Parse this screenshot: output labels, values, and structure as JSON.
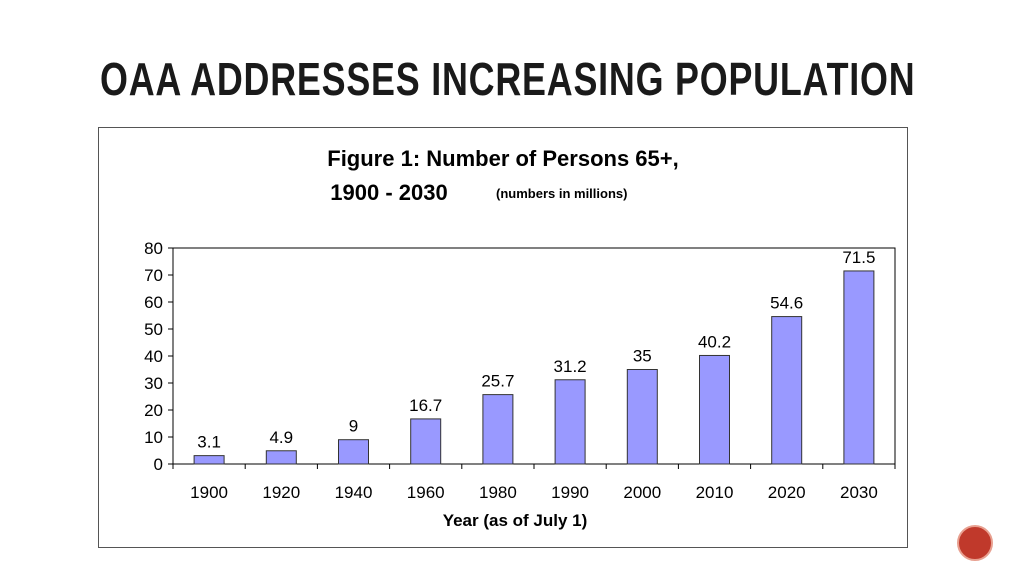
{
  "slide": {
    "title": "OAA ADDRESSES INCREASING POPULATION",
    "page_badge": ""
  },
  "chart_data": {
    "type": "bar",
    "title_line1": "Figure 1: Number of Persons 65+,",
    "title_line2": "1900 - 2030",
    "subtitle": "(numbers in millions)",
    "xlabel": "Year (as of July 1)",
    "ylabel": "",
    "categories": [
      "1900",
      "1920",
      "1940",
      "1960",
      "1980",
      "1990",
      "2000",
      "2010",
      "2020",
      "2030"
    ],
    "values": [
      3.1,
      4.9,
      9,
      16.7,
      25.7,
      31.2,
      35,
      40.2,
      54.6,
      71.5
    ],
    "data_labels": [
      "3.1",
      "4.9",
      "9",
      "16.7",
      "25.7",
      "31.2",
      "35",
      "40.2",
      "54.6",
      "71.5"
    ],
    "ylim": [
      0,
      80
    ],
    "yticks": [
      0,
      10,
      20,
      30,
      40,
      50,
      60,
      70,
      80
    ],
    "grid": false,
    "bar_color": "#9999ff",
    "bar_stroke": "#333333"
  }
}
